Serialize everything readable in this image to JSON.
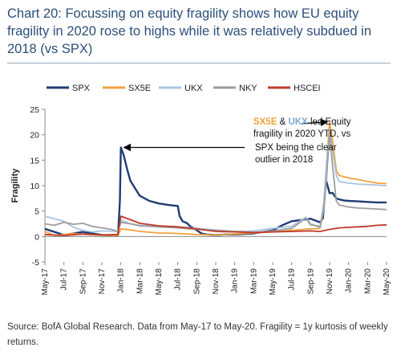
{
  "header": {
    "title": "Chart 20: Focussing on equity fragility shows how EU equity fragility in 2020 rose to highs while it was relatively subdued in 2018 (vs SPX)"
  },
  "footer": {
    "source": "Source: BofA Global Research. Data from May-17 to May-20. Fragility = 1y kurtosis of weekly returns."
  },
  "chart_data": {
    "type": "line",
    "title": "",
    "xlabel": "",
    "ylabel": "Fragility",
    "ylim": [
      -5,
      25
    ],
    "yticks": [
      -5,
      0,
      5,
      10,
      15,
      20,
      25
    ],
    "x_tick_labels": [
      "May-17",
      "Jul-17",
      "Sep-17",
      "Nov-17",
      "Jan-18",
      "Mar-18",
      "May-18",
      "Jul-18",
      "Sep-18",
      "Nov-18",
      "Jan-19",
      "Mar-19",
      "May-19",
      "Jul-19",
      "Sep-19",
      "Nov-19",
      "Jan-20",
      "Mar-20",
      "May-20"
    ],
    "legend_position": "top",
    "series": [
      {
        "name": "SPX",
        "color": "#1f3c73",
        "points": [
          [
            0,
            1.5
          ],
          [
            2,
            0.3
          ],
          [
            4,
            0.9
          ],
          [
            6,
            0.3
          ],
          [
            7.7,
            0.2
          ],
          [
            7.9,
            7
          ],
          [
            8,
            17.5
          ],
          [
            8.3,
            16
          ],
          [
            8.7,
            13
          ],
          [
            9,
            11
          ],
          [
            9.5,
            9.5
          ],
          [
            10,
            8
          ],
          [
            10.5,
            7.5
          ],
          [
            11,
            7
          ],
          [
            12,
            6.5
          ],
          [
            13,
            6.2
          ],
          [
            14,
            6
          ],
          [
            14.2,
            4
          ],
          [
            14.5,
            3
          ],
          [
            15,
            2.6
          ],
          [
            15.3,
            2
          ],
          [
            15.7,
            1.6
          ],
          [
            16.5,
            0.6
          ],
          [
            17,
            0.4
          ],
          [
            18,
            0.3
          ],
          [
            19,
            0.4
          ],
          [
            20,
            0.4
          ],
          [
            21,
            0.5
          ],
          [
            22,
            0.6
          ],
          [
            23,
            0.9
          ],
          [
            24,
            1.2
          ],
          [
            25,
            2.2
          ],
          [
            26,
            3
          ],
          [
            28,
            3.5
          ],
          [
            29,
            2.8
          ],
          [
            29.3,
            3.6
          ],
          [
            29.6,
            11.2
          ],
          [
            30,
            8.5
          ],
          [
            30.3,
            8.6
          ],
          [
            30.7,
            7.5
          ],
          [
            31,
            7.3
          ],
          [
            31.5,
            7.1
          ],
          [
            32,
            7.0
          ],
          [
            33,
            6.9
          ],
          [
            34,
            6.8
          ],
          [
            35,
            6.7
          ],
          [
            36,
            6.7
          ]
        ]
      },
      {
        "name": "SX5E",
        "color": "#f0a23c",
        "points": [
          [
            0,
            1.0
          ],
          [
            1,
            0.2
          ],
          [
            3,
            0.6
          ],
          [
            5,
            0.3
          ],
          [
            7.7,
            0.2
          ],
          [
            8,
            1.5
          ],
          [
            9,
            1.3
          ],
          [
            10,
            1.0
          ],
          [
            12,
            0.7
          ],
          [
            14,
            0.6
          ],
          [
            16,
            0.4
          ],
          [
            18,
            0.3
          ],
          [
            20,
            0.5
          ],
          [
            22,
            0.7
          ],
          [
            24,
            0.9
          ],
          [
            26,
            1.2
          ],
          [
            28,
            1.5
          ],
          [
            29,
            1.6
          ],
          [
            29.4,
            5.5
          ],
          [
            29.7,
            15
          ],
          [
            30,
            22.5
          ],
          [
            30.3,
            19
          ],
          [
            30.7,
            13
          ],
          [
            31,
            12
          ],
          [
            32,
            11.5
          ],
          [
            33,
            11.2
          ],
          [
            34,
            10.8
          ],
          [
            35,
            10.5
          ],
          [
            36,
            10.4
          ]
        ]
      },
      {
        "name": "UKX",
        "color": "#a9c4e4",
        "points": [
          [
            0,
            4
          ],
          [
            1,
            3.5
          ],
          [
            2,
            3
          ],
          [
            3,
            1.8
          ],
          [
            4,
            1.2
          ],
          [
            5,
            0.9
          ],
          [
            6,
            1.1
          ],
          [
            7.7,
            1.0
          ],
          [
            8,
            3.2
          ],
          [
            9,
            2.5
          ],
          [
            10,
            2.2
          ],
          [
            12,
            2.0
          ],
          [
            14,
            1.9
          ],
          [
            16,
            1.6
          ],
          [
            18,
            1.3
          ],
          [
            20,
            1.0
          ],
          [
            22,
            1.1
          ],
          [
            24,
            1.6
          ],
          [
            26,
            2.0
          ],
          [
            27.5,
            3.8
          ],
          [
            28,
            2.5
          ],
          [
            29,
            1.8
          ],
          [
            29.4,
            7
          ],
          [
            29.7,
            15
          ],
          [
            30,
            21
          ],
          [
            30.3,
            17
          ],
          [
            30.7,
            12
          ],
          [
            31,
            10.8
          ],
          [
            32,
            10.5
          ],
          [
            33,
            10.3
          ],
          [
            34,
            10.2
          ],
          [
            35,
            10.1
          ],
          [
            36,
            10.0
          ]
        ]
      },
      {
        "name": "NKY",
        "color": "#9d9d9d",
        "points": [
          [
            0,
            2.5
          ],
          [
            1,
            2.2
          ],
          [
            2,
            2.8
          ],
          [
            3,
            2.4
          ],
          [
            4,
            2.6
          ],
          [
            5,
            2.0
          ],
          [
            6,
            1.7
          ],
          [
            7,
            1.4
          ],
          [
            7.7,
            1.0
          ],
          [
            8,
            2.8
          ],
          [
            9,
            2.5
          ],
          [
            10,
            2.1
          ],
          [
            12,
            1.9
          ],
          [
            14,
            1.7
          ],
          [
            16,
            1.4
          ],
          [
            18,
            1.2
          ],
          [
            20,
            1.0
          ],
          [
            22,
            0.8
          ],
          [
            24,
            1.1
          ],
          [
            26,
            1.6
          ],
          [
            27.5,
            3.6
          ],
          [
            28,
            2.3
          ],
          [
            29,
            2.0
          ],
          [
            29.4,
            5.5
          ],
          [
            29.7,
            12
          ],
          [
            30,
            20.5
          ],
          [
            30.3,
            14
          ],
          [
            30.7,
            7
          ],
          [
            31,
            6.2
          ],
          [
            32,
            5.8
          ],
          [
            33,
            5.6
          ],
          [
            34,
            5.5
          ],
          [
            35,
            5.4
          ],
          [
            36,
            5.3
          ]
        ]
      },
      {
        "name": "HSCEI",
        "color": "#c0392b",
        "points": [
          [
            0,
            0.4
          ],
          [
            2,
            0.2
          ],
          [
            4,
            0.5
          ],
          [
            6,
            0.3
          ],
          [
            7.7,
            0.4
          ],
          [
            8,
            4.0
          ],
          [
            9,
            3.3
          ],
          [
            10,
            2.6
          ],
          [
            12,
            2.1
          ],
          [
            14,
            1.9
          ],
          [
            16,
            1.5
          ],
          [
            18,
            1.0
          ],
          [
            20,
            0.9
          ],
          [
            22,
            0.8
          ],
          [
            24,
            0.9
          ],
          [
            26,
            1.0
          ],
          [
            28,
            1.1
          ],
          [
            29,
            1.0
          ],
          [
            30,
            1.4
          ],
          [
            31,
            1.7
          ],
          [
            32,
            1.8
          ],
          [
            33,
            1.9
          ],
          [
            34,
            2.0
          ],
          [
            35,
            2.2
          ],
          [
            36,
            2.3
          ]
        ]
      }
    ],
    "annotations": [
      {
        "id": "a1",
        "text": "SPX  being the clear outlier in 2018",
        "points_to": [
          8,
          17.5
        ]
      },
      {
        "id": "a2",
        "prefix_sx5e": "SX5E",
        "amp": " & ",
        "prefix_ukx": "UKX",
        "text_after": " led Equity fragility in 2020 YTD, vs",
        "points_to": [
          30,
          22.5
        ]
      }
    ]
  }
}
